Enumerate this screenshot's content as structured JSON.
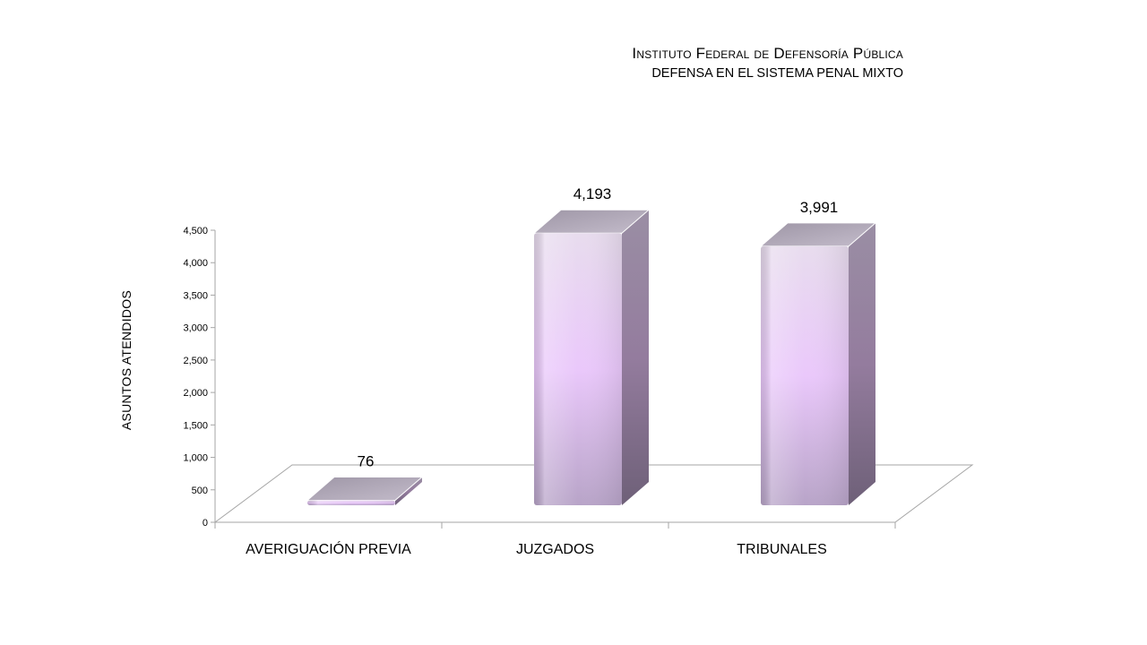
{
  "header": {
    "title": "Instituto Federal de Defensoría Pública",
    "subtitle": "DEFENSA EN EL SISTEMA PENAL MIXTO"
  },
  "chart_data": {
    "type": "bar",
    "title": "Instituto Federal de Defensoría Pública",
    "subtitle": "DEFENSA EN EL SISTEMA PENAL MIXTO",
    "categories": [
      "AVERIGUACIÓN PREVIA",
      "JUZGADOS",
      "TRIBUNALES"
    ],
    "values": [
      76,
      4193,
      3991
    ],
    "value_labels": [
      "76",
      "4,193",
      "3,991"
    ],
    "xlabel": "",
    "ylabel": "ASUNTOS ATENDIDOS",
    "ylim": [
      0,
      4500
    ],
    "yticks": [
      0,
      500,
      1000,
      1500,
      2000,
      2500,
      3000,
      3500,
      4000,
      4500
    ],
    "ytick_labels": [
      "0",
      "500",
      "1,000",
      "1,500",
      "2,000",
      "2,500",
      "3,000",
      "3,500",
      "4,000",
      "4,500"
    ],
    "grid": false,
    "style": "3d-bar",
    "colors": {
      "bar_front": "#e8c8f8",
      "bar_side": "#8c7a98",
      "bar_top": "#b0a4b8"
    }
  }
}
